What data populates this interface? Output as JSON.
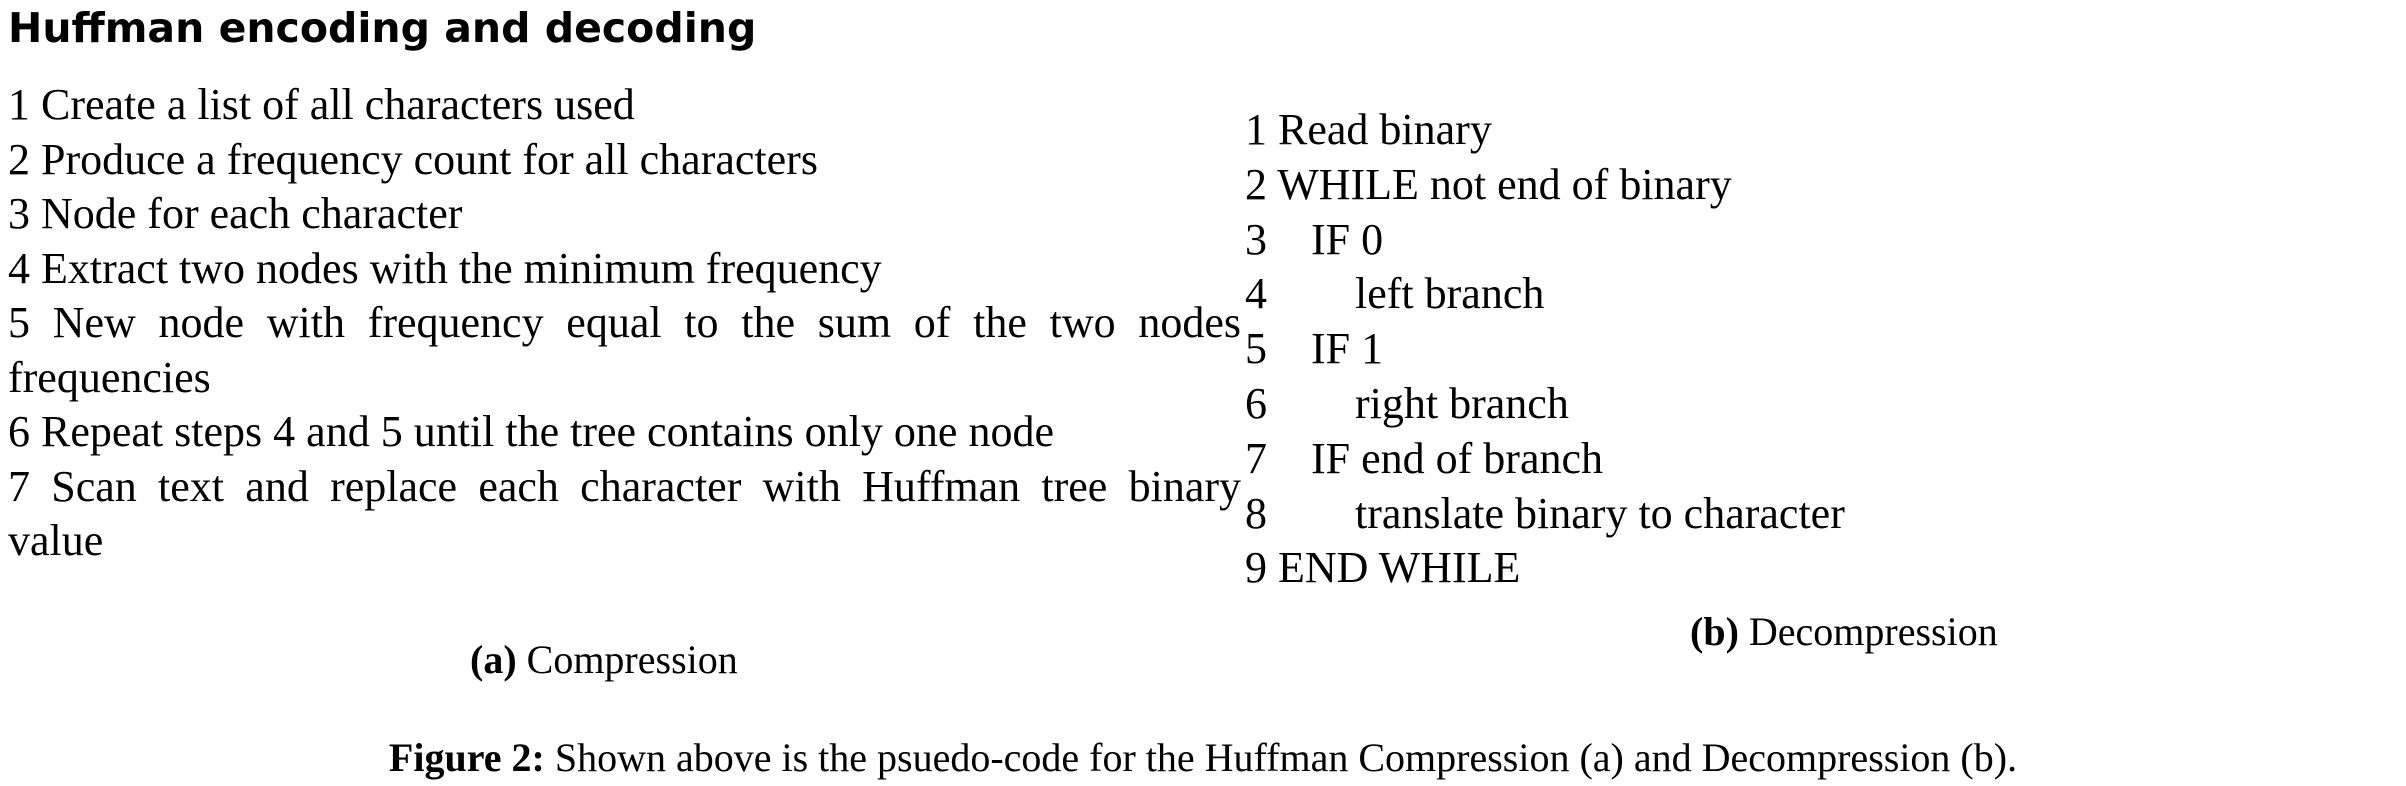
{
  "heading": "Huffman encoding and decoding",
  "compression": {
    "steps": [
      "1 Create a list of all characters used",
      "2 Produce a frequency count for all characters",
      "3 Node for each character",
      "4 Extract two nodes with the minimum frequency",
      "5 New node with frequency equal to the sum of the two nodes frequencies",
      "6 Repeat steps 4 and 5 until the tree contains only one node",
      "7 Scan text and replace each character with Huffman tree binary value"
    ],
    "caption_label": "(a)",
    "caption_text": "Compression"
  },
  "decompression": {
    "lines": [
      "1 Read binary",
      "2 WHILE not end of binary",
      "3    IF 0",
      "4        left branch",
      "5    IF 1",
      "6        right branch",
      "7    IF end of branch",
      "8        translate binary to character",
      "9 END WHILE"
    ],
    "caption_label": "(b)",
    "caption_text": "Decompression"
  },
  "figure_caption": {
    "label": "Figure 2:",
    "text": "Shown above is the psuedo-code for the Huffman Compression (a) and Decompression (b)."
  }
}
